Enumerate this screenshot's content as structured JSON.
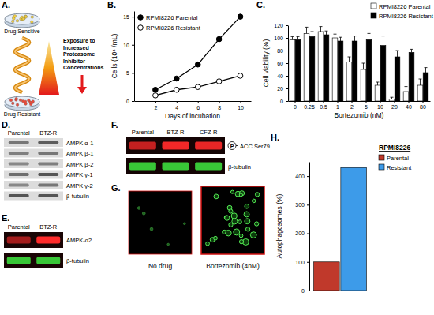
{
  "chart_data": [
    {
      "panel_label": "B.",
      "type": "line",
      "x": [
        2,
        4,
        6,
        8,
        10
      ],
      "xlim": [
        0,
        11
      ],
      "xticks": [
        2,
        4,
        6,
        8,
        10
      ],
      "ylim": [
        0,
        16
      ],
      "yticks": [
        0,
        5,
        10,
        15
      ],
      "x_label": "Days of incubation",
      "y_label": "Cells (10⁴ /mL)",
      "legend": "top-left",
      "series": [
        {
          "name": "RPMI8226 Parental",
          "color": "#000000",
          "marker": "filled-circle",
          "values": [
            2,
            4,
            6.5,
            11,
            15
          ]
        },
        {
          "name": "RPMI8226 Resistant",
          "color": "#000000",
          "marker": "open-circle",
          "values": [
            1,
            2,
            2.5,
            3.5,
            4.5
          ]
        }
      ]
    },
    {
      "panel_label": "C.",
      "type": "bar",
      "categories": [
        "0",
        "0.25",
        "0.5",
        "1",
        "2",
        "5",
        "10",
        "20",
        "40",
        "80"
      ],
      "ylim": [
        0,
        120
      ],
      "yticks": [
        0,
        20,
        40,
        60,
        80,
        100,
        120
      ],
      "x_label": "Bortezomib (nM)",
      "y_label": "Cell viability (%)",
      "legend": "top-right",
      "series": [
        {
          "name": "RPMI8226 Parental",
          "color": "#ffffff",
          "values": [
            97,
            107,
            110,
            100,
            62,
            50,
            25,
            3,
            15,
            25
          ],
          "errors": [
            5,
            10,
            8,
            6,
            8,
            10,
            5,
            3,
            8,
            10
          ]
        },
        {
          "name": "RPMI8226 Resistant",
          "color": "#000000",
          "values": [
            97,
            102,
            105,
            95,
            95,
            97,
            88,
            70,
            77,
            45
          ],
          "errors": [
            5,
            8,
            6,
            6,
            8,
            10,
            15,
            10,
            5,
            8
          ]
        }
      ]
    },
    {
      "panel_label": "H.",
      "type": "bar",
      "categories": [
        null
      ],
      "ylim": [
        0,
        450
      ],
      "yticks": [
        0,
        100,
        200,
        300,
        400
      ],
      "y_label": "Autophagosomes (%)",
      "legend": "top-right",
      "legend_title": "RPMI8226",
      "series": [
        {
          "name": "Parental",
          "color": "#c0392b",
          "values": [
            100
          ]
        },
        {
          "name": "Resistant",
          "color": "#3d9be9",
          "values": [
            430
          ]
        }
      ]
    }
  ],
  "diagram": {
    "panel_label": "A.",
    "top_label": "Drug Sensitive",
    "side_label": [
      "Exposure to",
      "Increased",
      "Proteasome",
      "Inhibitor",
      "Concentrations"
    ],
    "bottom_label": "Drug Resistant"
  },
  "blots": [
    {
      "panel_label": "D.",
      "lanes": [
        "Parental",
        "BTZ-R"
      ],
      "rows": [
        "AMPK α-1",
        "AMPK β-1",
        "AMPK β-2",
        "AMPK γ-1",
        "AMPK γ-2",
        "β-tubulin"
      ]
    },
    {
      "panel_label": "E.",
      "lanes": [
        "Parental",
        "BTZ-R"
      ],
      "rows": [
        "AMPK-α2",
        "β-tubulin"
      ]
    },
    {
      "panel_label": "F.",
      "lanes": [
        "Parental",
        "BTZ-R",
        "CFZ-R"
      ],
      "rows": [
        "ACC Ser79",
        "β-tubulin"
      ],
      "phospho_mark": "P"
    }
  ],
  "micrograph": {
    "panel_label": "G.",
    "images": [
      "No drug",
      "Bortezomib (4nM)"
    ]
  }
}
